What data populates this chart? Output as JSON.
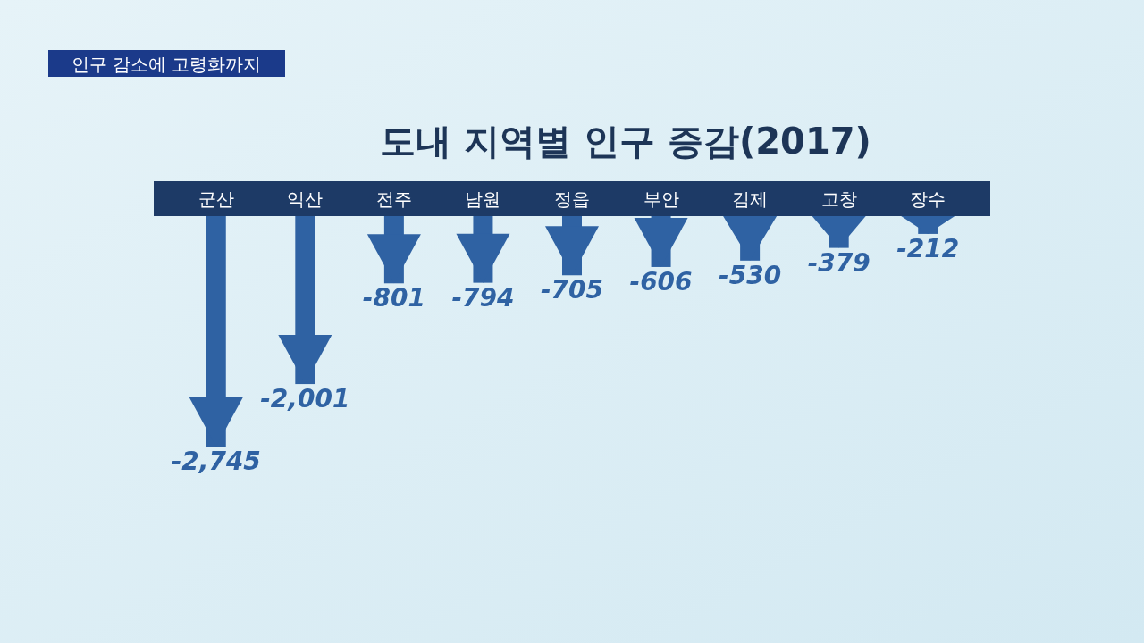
{
  "chart_data": {
    "type": "bar",
    "title": "도내 지역별 인구 증감(2017)",
    "annotations": [
      "인구 감소에 고령화까지"
    ],
    "categories": [
      "군산",
      "익산",
      "전주",
      "남원",
      "정읍",
      "부안",
      "김제",
      "고창",
      "장수"
    ],
    "values": [
      -2745,
      -2001,
      -801,
      -794,
      -705,
      -606,
      -530,
      -379,
      -212
    ],
    "value_labels": [
      "-2,745",
      "-2,001",
      "-801",
      "-794",
      "-705",
      "-606",
      "-530",
      "-379",
      "-212"
    ],
    "color": "#2f62a3"
  }
}
